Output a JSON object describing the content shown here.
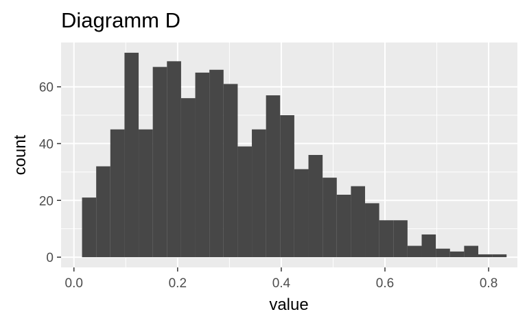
{
  "chart_data": {
    "type": "bar",
    "title": "Diagramm D",
    "xlabel": "value",
    "ylabel": "count",
    "xlim": [
      -0.0248,
      0.8555
    ],
    "ylim": [
      -3.6,
      75.6
    ],
    "x_ticks": [
      0.0,
      0.2,
      0.4,
      0.6,
      0.8
    ],
    "x_tick_labels": [
      "0.0",
      "0.2",
      "0.4",
      "0.6",
      "0.8"
    ],
    "y_ticks": [
      0,
      20,
      40,
      60
    ],
    "y_tick_labels": [
      "0",
      "20",
      "40",
      "60"
    ],
    "grid": true,
    "legend": "none",
    "bin_width": 0.0273,
    "bin_centers": [
      0.0293,
      0.0566,
      0.0839,
      0.1112,
      0.1385,
      0.1658,
      0.1931,
      0.2204,
      0.2477,
      0.275,
      0.3023,
      0.3296,
      0.3569,
      0.3842,
      0.4115,
      0.4388,
      0.4661,
      0.4934,
      0.5207,
      0.548,
      0.5753,
      0.6026,
      0.6299,
      0.6572,
      0.6845,
      0.7118,
      0.7391,
      0.7664,
      0.7937,
      0.821
    ],
    "values": [
      21,
      32,
      45,
      72,
      45,
      67,
      69,
      56,
      65,
      66,
      61,
      39,
      45,
      57,
      50,
      31,
      36,
      28,
      22,
      25,
      19,
      13,
      13,
      4,
      8,
      3,
      2,
      4,
      1,
      1
    ],
    "colors": {
      "bar": "#474747",
      "panel": "#ebebeb",
      "grid": "#ffffff",
      "tick": "#333333"
    }
  }
}
